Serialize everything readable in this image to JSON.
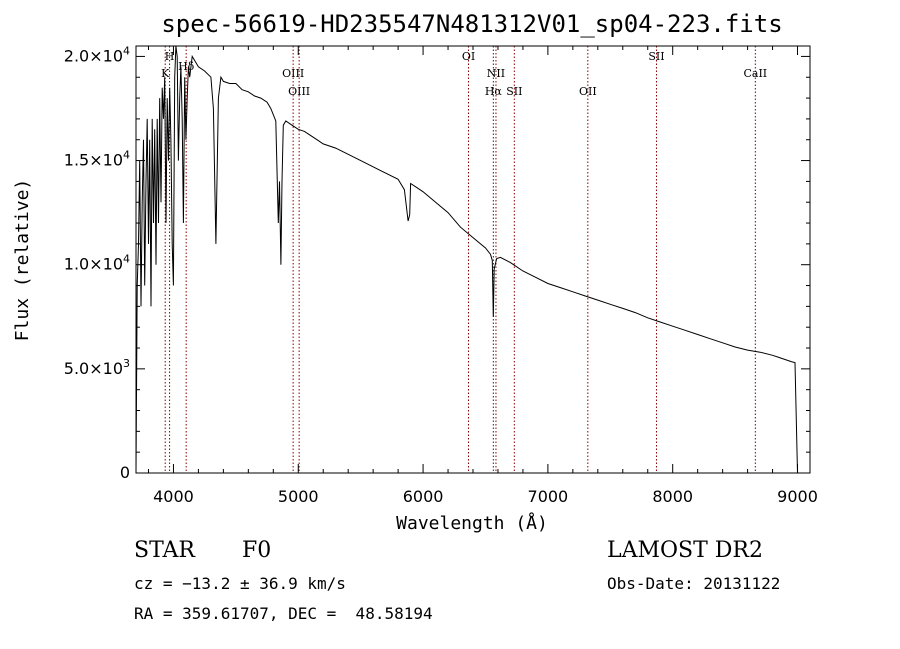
{
  "chart_data": {
    "type": "line",
    "title": "spec-56619-HD235547N481312V01_sp04-223.fits",
    "xlabel": "Wavelength (Å)",
    "ylabel": "Flux (relative)",
    "xlim": [
      3700,
      9100
    ],
    "ylim": [
      0,
      20500
    ],
    "x_ticks": [
      4000,
      5000,
      6000,
      7000,
      8000,
      9000
    ],
    "x_tick_labels": [
      "4000",
      "5000",
      "6000",
      "7000",
      "8000",
      "9000"
    ],
    "y_ticks": [
      0,
      5000,
      10000,
      15000,
      20000
    ],
    "y_tick_labels": [
      {
        "mant": "0",
        "exp": ""
      },
      {
        "mant": "5.0×10",
        "exp": "3"
      },
      {
        "mant": "1.0×10",
        "exp": "4"
      },
      {
        "mant": "1.5×10",
        "exp": "4"
      },
      {
        "mant": "2.0×10",
        "exp": "4"
      }
    ],
    "series": [
      {
        "x": [
          3700,
          3710,
          3720,
          3730,
          3740,
          3750,
          3760,
          3770,
          3780,
          3790,
          3800,
          3810,
          3820,
          3830,
          3840,
          3850,
          3860,
          3870,
          3880,
          3890,
          3900,
          3910,
          3920,
          3930,
          3940,
          3950,
          3960,
          3970,
          3980,
          3990,
          4000,
          4010,
          4020,
          4030,
          4040,
          4050,
          4060,
          4070,
          4080,
          4090,
          4100,
          4110,
          4120,
          4130,
          4150,
          4200,
          4250,
          4300,
          4320,
          4340,
          4360,
          4380,
          4400,
          4450,
          4500,
          4550,
          4600,
          4650,
          4700,
          4750,
          4780,
          4800,
          4820,
          4840,
          4850,
          4861,
          4870,
          4880,
          4900,
          4950,
          5000,
          5050,
          5100,
          5150,
          5200,
          5300,
          5400,
          5500,
          5600,
          5700,
          5800,
          5850,
          5880,
          5893,
          5900,
          5950,
          6000,
          6100,
          6200,
          6300,
          6400,
          6500,
          6540,
          6555,
          6563,
          6570,
          6590,
          6620,
          6700,
          6800,
          6900,
          7000,
          7100,
          7200,
          7300,
          7400,
          7500,
          7600,
          7700,
          7800,
          7900,
          8000,
          8100,
          8200,
          8300,
          8400,
          8500,
          8600,
          8700,
          8800,
          8850,
          8900,
          8950,
          8980,
          9000
        ],
        "y": [
          0,
          9000,
          11000,
          15000,
          8000,
          13000,
          16000,
          9000,
          14000,
          17000,
          11000,
          16000,
          8000,
          17000,
          12000,
          16500,
          10000,
          17000,
          12000,
          18000,
          13000,
          18500,
          17000,
          19000,
          12000,
          18000,
          15000,
          18500,
          16000,
          11000,
          9000,
          19000,
          20500,
          20000,
          15000,
          18000,
          19500,
          17000,
          12000,
          19000,
          16000,
          18000,
          19500,
          19000,
          20000,
          19500,
          19300,
          19000,
          17500,
          11000,
          18000,
          19000,
          18800,
          18700,
          18700,
          18400,
          18300,
          18100,
          18000,
          17800,
          17500,
          17200,
          16900,
          12000,
          14000,
          10000,
          14000,
          16700,
          16900,
          16700,
          16500,
          16400,
          16200,
          16000,
          15800,
          15600,
          15300,
          15000,
          14700,
          14400,
          14100,
          13600,
          12100,
          12400,
          13900,
          13700,
          13500,
          13000,
          12500,
          11800,
          11300,
          10800,
          10500,
          10200,
          7500,
          9800,
          10300,
          10350,
          10100,
          9700,
          9400,
          9100,
          8900,
          8700,
          8500,
          8300,
          8100,
          7900,
          7700,
          7450,
          7250,
          7050,
          6850,
          6650,
          6450,
          6250,
          6050,
          5900,
          5800,
          5650,
          5550,
          5450,
          5350,
          5300,
          0
        ]
      }
    ],
    "line_markers": [
      {
        "label": "K",
        "x": 3934,
        "row": 2
      },
      {
        "label": "H",
        "x": 3969,
        "row": 0
      },
      {
        "label": "Hδ",
        "x": 4102,
        "row": 1
      },
      {
        "label": "OIII",
        "x": 4959,
        "row": 2
      },
      {
        "label": "OIII",
        "x": 5007,
        "row": 3
      },
      {
        "label": "OI",
        "x": 6364,
        "row": 0
      },
      {
        "label": "NII",
        "x": 6584,
        "row": 2
      },
      {
        "label": "Hα",
        "x": 6563,
        "row": 3
      },
      {
        "label": "SII",
        "x": 6731,
        "row": 3
      },
      {
        "label": "OII",
        "x": 7320,
        "row": 3
      },
      {
        "label": "SII",
        "x": 7870,
        "row": 0
      },
      {
        "label": "CaII",
        "x": 8662,
        "row": 2
      }
    ],
    "colors": {
      "line": "#000000",
      "marker": "#8b0000"
    }
  },
  "info": {
    "object_type": "STAR",
    "subclass": "F0",
    "survey": "LAMOST DR2",
    "redshift": "cz = −13.2 ± 36.9 km/s",
    "obs_date": "Obs-Date: 20131122",
    "coords": "RA = 359.61707, DEC =  48.58194"
  }
}
